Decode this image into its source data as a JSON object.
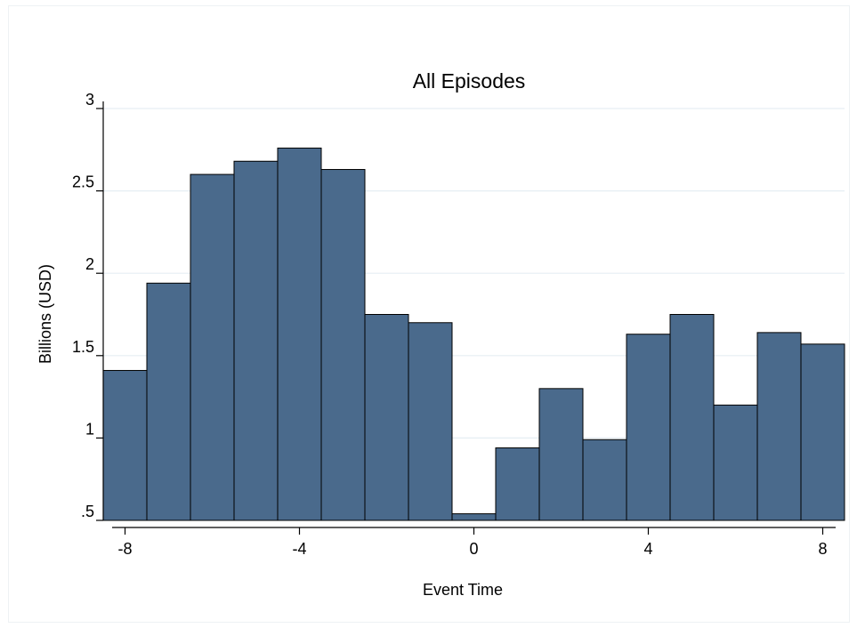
{
  "chart_data": {
    "type": "bar",
    "title": "All Episodes",
    "xlabel": "Event Time",
    "ylabel": "Billions (USD)",
    "x": [
      -8,
      -7,
      -6,
      -5,
      -4,
      -3,
      -2,
      -1,
      0,
      1,
      2,
      3,
      4,
      5,
      6,
      7,
      8
    ],
    "values": [
      1.41,
      1.94,
      2.6,
      2.68,
      2.76,
      2.63,
      1.75,
      1.7,
      0.54,
      0.94,
      1.3,
      0.99,
      1.63,
      1.75,
      1.2,
      1.64,
      1.57
    ],
    "xlim": [
      -8.5,
      8.5
    ],
    "ylim": [
      0.5,
      3.0
    ],
    "x_ticks": [
      -8,
      -4,
      0,
      4,
      8
    ],
    "x_tick_labels": [
      "-8",
      "-4",
      "0",
      "4",
      "8"
    ],
    "y_ticks": [
      0.5,
      1,
      1.5,
      2,
      2.5,
      3
    ],
    "y_tick_labels": [
      ".5",
      "1",
      "1.5",
      "2",
      "2.5",
      "3"
    ],
    "grid": true,
    "bar_color": "#4a6a8c",
    "bar_edge_color": "#000000",
    "grid_color": "#e6eef3"
  }
}
